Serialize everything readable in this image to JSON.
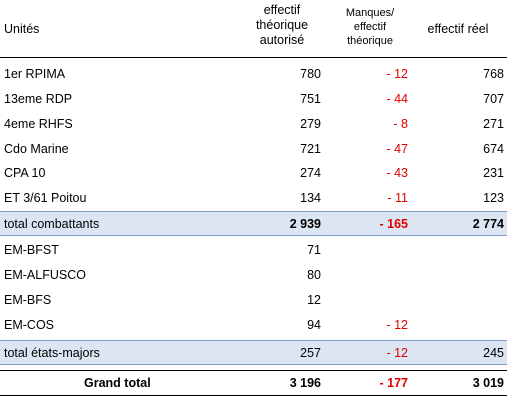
{
  "header": {
    "unit": "Unités",
    "authorized_lines": [
      "effectif",
      "théorique",
      "autorisé"
    ],
    "shortfall_lines": [
      "Manques/",
      "effectif",
      "théorique"
    ],
    "actual": "effectif réel"
  },
  "combat_rows": [
    {
      "unit": "1er RPIMA",
      "authorized": "780",
      "shortfall": "- 12",
      "actual": "768"
    },
    {
      "unit": "13eme RDP",
      "authorized": "751",
      "shortfall": "- 44",
      "actual": "707"
    },
    {
      "unit": "4eme RHFS",
      "authorized": "279",
      "shortfall": "- 8",
      "actual": "271"
    },
    {
      "unit": "Cdo Marine",
      "authorized": "721",
      "shortfall": "- 47",
      "actual": "674"
    },
    {
      "unit": "CPA 10",
      "authorized": "274",
      "shortfall": "- 43",
      "actual": "231"
    },
    {
      "unit": "ET 3/61 Poitou",
      "authorized": "134",
      "shortfall": "- 11",
      "actual": "123"
    }
  ],
  "total_combat": {
    "unit": "total combattants",
    "authorized": "2 939",
    "shortfall": "- 165",
    "actual": "2 774"
  },
  "staff_rows": [
    {
      "unit": "EM-BFST",
      "authorized": "71",
      "shortfall": "",
      "actual": ""
    },
    {
      "unit": "EM-ALFUSCO",
      "authorized": "80",
      "shortfall": "",
      "actual": ""
    },
    {
      "unit": "EM-BFS",
      "authorized": "12",
      "shortfall": "",
      "actual": ""
    },
    {
      "unit": "EM-COS",
      "authorized": "94",
      "shortfall": "- 12",
      "actual": ""
    }
  ],
  "total_staff": {
    "unit": "total états-majors",
    "authorized": "257",
    "shortfall": "- 12",
    "actual": "245"
  },
  "grand_total": {
    "unit": "Grand total",
    "authorized": "3 196",
    "shortfall": "- 177",
    "actual": "3 019"
  }
}
